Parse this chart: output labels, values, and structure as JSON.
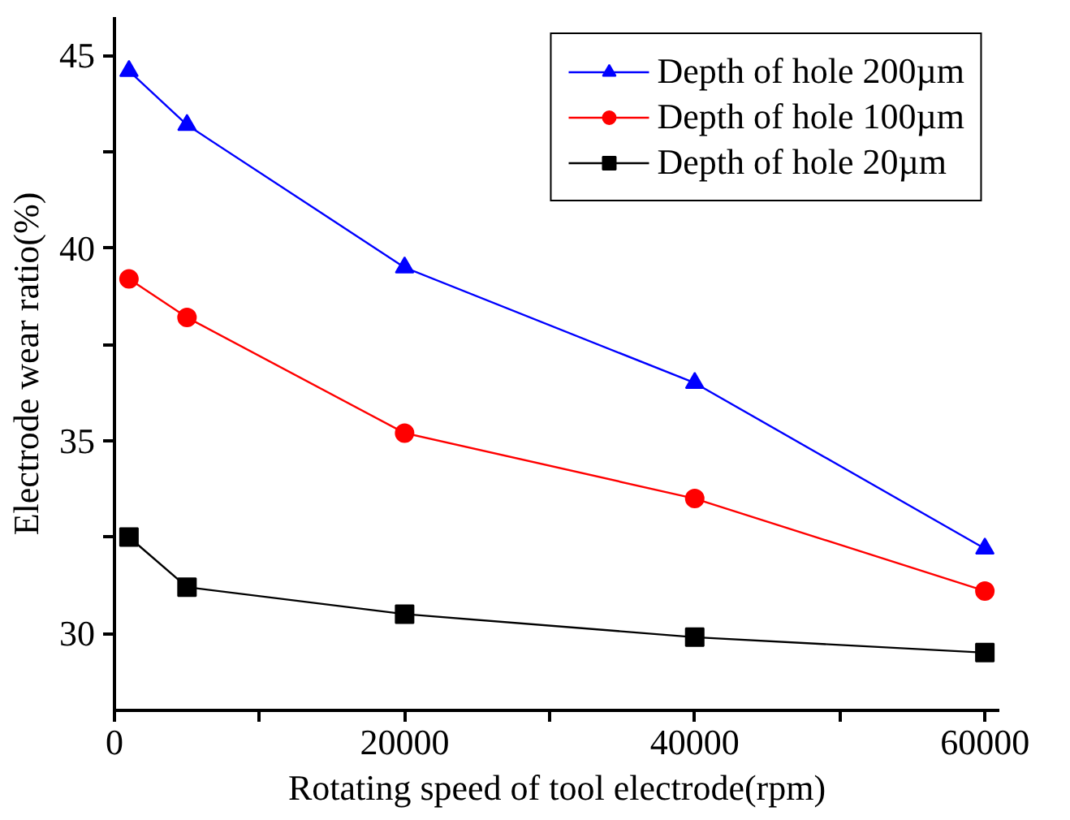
{
  "chart_data": {
    "type": "line",
    "xlabel": "Rotating speed of tool electrode(rpm)",
    "ylabel": "Electrode wear ratio(%)",
    "x": [
      1000,
      5000,
      20000,
      40000,
      60000
    ],
    "series": [
      {
        "name": "Depth of hole 200µm",
        "color": "#0000ff",
        "marker": "triangle",
        "values": [
          44.6,
          43.2,
          39.5,
          36.5,
          32.2
        ]
      },
      {
        "name": "Depth of hole 100µm",
        "color": "#ff0000",
        "marker": "circle",
        "values": [
          39.2,
          38.2,
          35.2,
          33.5,
          31.1
        ]
      },
      {
        "name": "Depth of hole 20µm",
        "color": "#000000",
        "marker": "square",
        "values": [
          32.5,
          31.2,
          30.5,
          29.9,
          29.5
        ]
      }
    ],
    "xlim": [
      0,
      61000
    ],
    "ylim": [
      28,
      46
    ],
    "xticks": [
      0,
      {
        "value": 10000,
        "label": null
      },
      20000,
      {
        "value": 30000,
        "label": null
      },
      40000,
      {
        "value": 50000,
        "label": null
      },
      60000
    ],
    "yticks": [
      30,
      {
        "value": 32.5,
        "label": null
      },
      35,
      {
        "value": 37.5,
        "label": null
      },
      40,
      {
        "value": 42.5,
        "label": null
      },
      45
    ],
    "grid": false,
    "legend": "top right",
    "line_style": "solid"
  }
}
